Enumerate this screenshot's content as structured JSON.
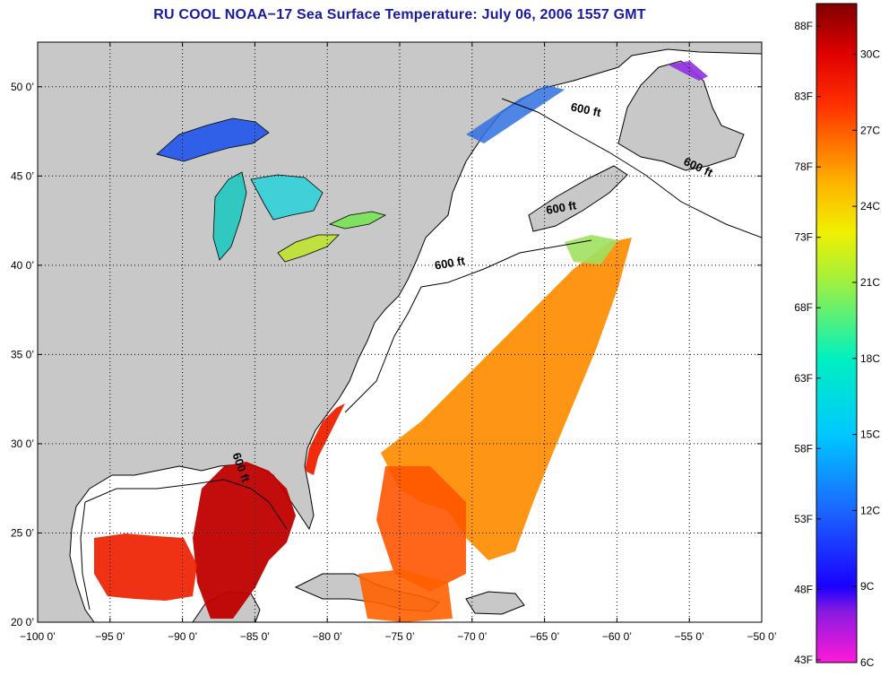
{
  "title": "RU COOL  NOAA−17  Sea Surface Temperature:  July 06, 2006 1557 GMT",
  "map": {
    "lon_range": [
      -100,
      -50
    ],
    "lat_range": [
      20,
      52.5
    ],
    "x_ticks": [
      {
        "value": -100,
        "label": "−100 0’"
      },
      {
        "value": -95,
        "label": "−95 0’"
      },
      {
        "value": -90,
        "label": "−90 0’"
      },
      {
        "value": -85,
        "label": "−85 0’"
      },
      {
        "value": -80,
        "label": "−80 0’"
      },
      {
        "value": -75,
        "label": "−75 0’"
      },
      {
        "value": -70,
        "label": "−70 0’"
      },
      {
        "value": -65,
        "label": "−65 0’"
      },
      {
        "value": -60,
        "label": "−60 0’"
      },
      {
        "value": -55,
        "label": "−55 0’"
      },
      {
        "value": -50,
        "label": "−50 0’"
      }
    ],
    "y_ticks": [
      {
        "value": 20,
        "label": "20 0’"
      },
      {
        "value": 25,
        "label": "25 0’"
      },
      {
        "value": 30,
        "label": "30 0’"
      },
      {
        "value": 35,
        "label": "35 0’"
      },
      {
        "value": 40,
        "label": "40 0’"
      },
      {
        "value": 45,
        "label": "45 0’"
      },
      {
        "value": 50,
        "label": "50 0’"
      }
    ],
    "grid": true,
    "contour_label": "600 ft",
    "contour_labels": [
      {
        "lon": -62.2,
        "lat": 48.5,
        "text": "600 ft",
        "rotate": 12
      },
      {
        "lon": -54.5,
        "lat": 45.3,
        "text": "600 ft",
        "rotate": 25
      },
      {
        "lon": -63.8,
        "lat": 43.0,
        "text": "600 ft",
        "rotate": -10
      },
      {
        "lon": -71.5,
        "lat": 39.9,
        "text": "600 ft",
        "rotate": -10
      },
      {
        "lon": -86.2,
        "lat": 28.6,
        "text": "600 ft",
        "rotate": 70
      }
    ],
    "colors": {
      "land": "#c8c8c8",
      "ocean": "#ffffff",
      "grid": "#000000"
    }
  },
  "colorbar": {
    "min_c": 6,
    "max_c": 32,
    "celsius_ticks": [
      {
        "value": 30,
        "label": "30C"
      },
      {
        "value": 27,
        "label": "27C"
      },
      {
        "value": 24,
        "label": "24C"
      },
      {
        "value": 21,
        "label": "21C"
      },
      {
        "value": 18,
        "label": "18C"
      },
      {
        "value": 15,
        "label": "15C"
      },
      {
        "value": 12,
        "label": "12C"
      },
      {
        "value": 9,
        "label": "9C"
      },
      {
        "value": 6,
        "label": "6C"
      }
    ],
    "fahrenheit_ticks": [
      {
        "value": 88,
        "label": "88F"
      },
      {
        "value": 83,
        "label": "83F"
      },
      {
        "value": 78,
        "label": "78F"
      },
      {
        "value": 73,
        "label": "73F"
      },
      {
        "value": 68,
        "label": "68F"
      },
      {
        "value": 63,
        "label": "63F"
      },
      {
        "value": 58,
        "label": "58F"
      },
      {
        "value": 53,
        "label": "53F"
      },
      {
        "value": 48,
        "label": "48F"
      },
      {
        "value": 43,
        "label": "43F"
      }
    ],
    "stops": [
      {
        "t": 6,
        "color": "#ff1ad9"
      },
      {
        "t": 8,
        "color": "#8a1ae0"
      },
      {
        "t": 9,
        "color": "#1a00ff"
      },
      {
        "t": 12,
        "color": "#1a66ff"
      },
      {
        "t": 15,
        "color": "#00c8ff"
      },
      {
        "t": 18,
        "color": "#00f0c0"
      },
      {
        "t": 21,
        "color": "#a0f040"
      },
      {
        "t": 23,
        "color": "#f0f000"
      },
      {
        "t": 25,
        "color": "#ffb000"
      },
      {
        "t": 28,
        "color": "#ff3000"
      },
      {
        "t": 30,
        "color": "#e00000"
      },
      {
        "t": 32,
        "color": "#800000"
      }
    ]
  }
}
